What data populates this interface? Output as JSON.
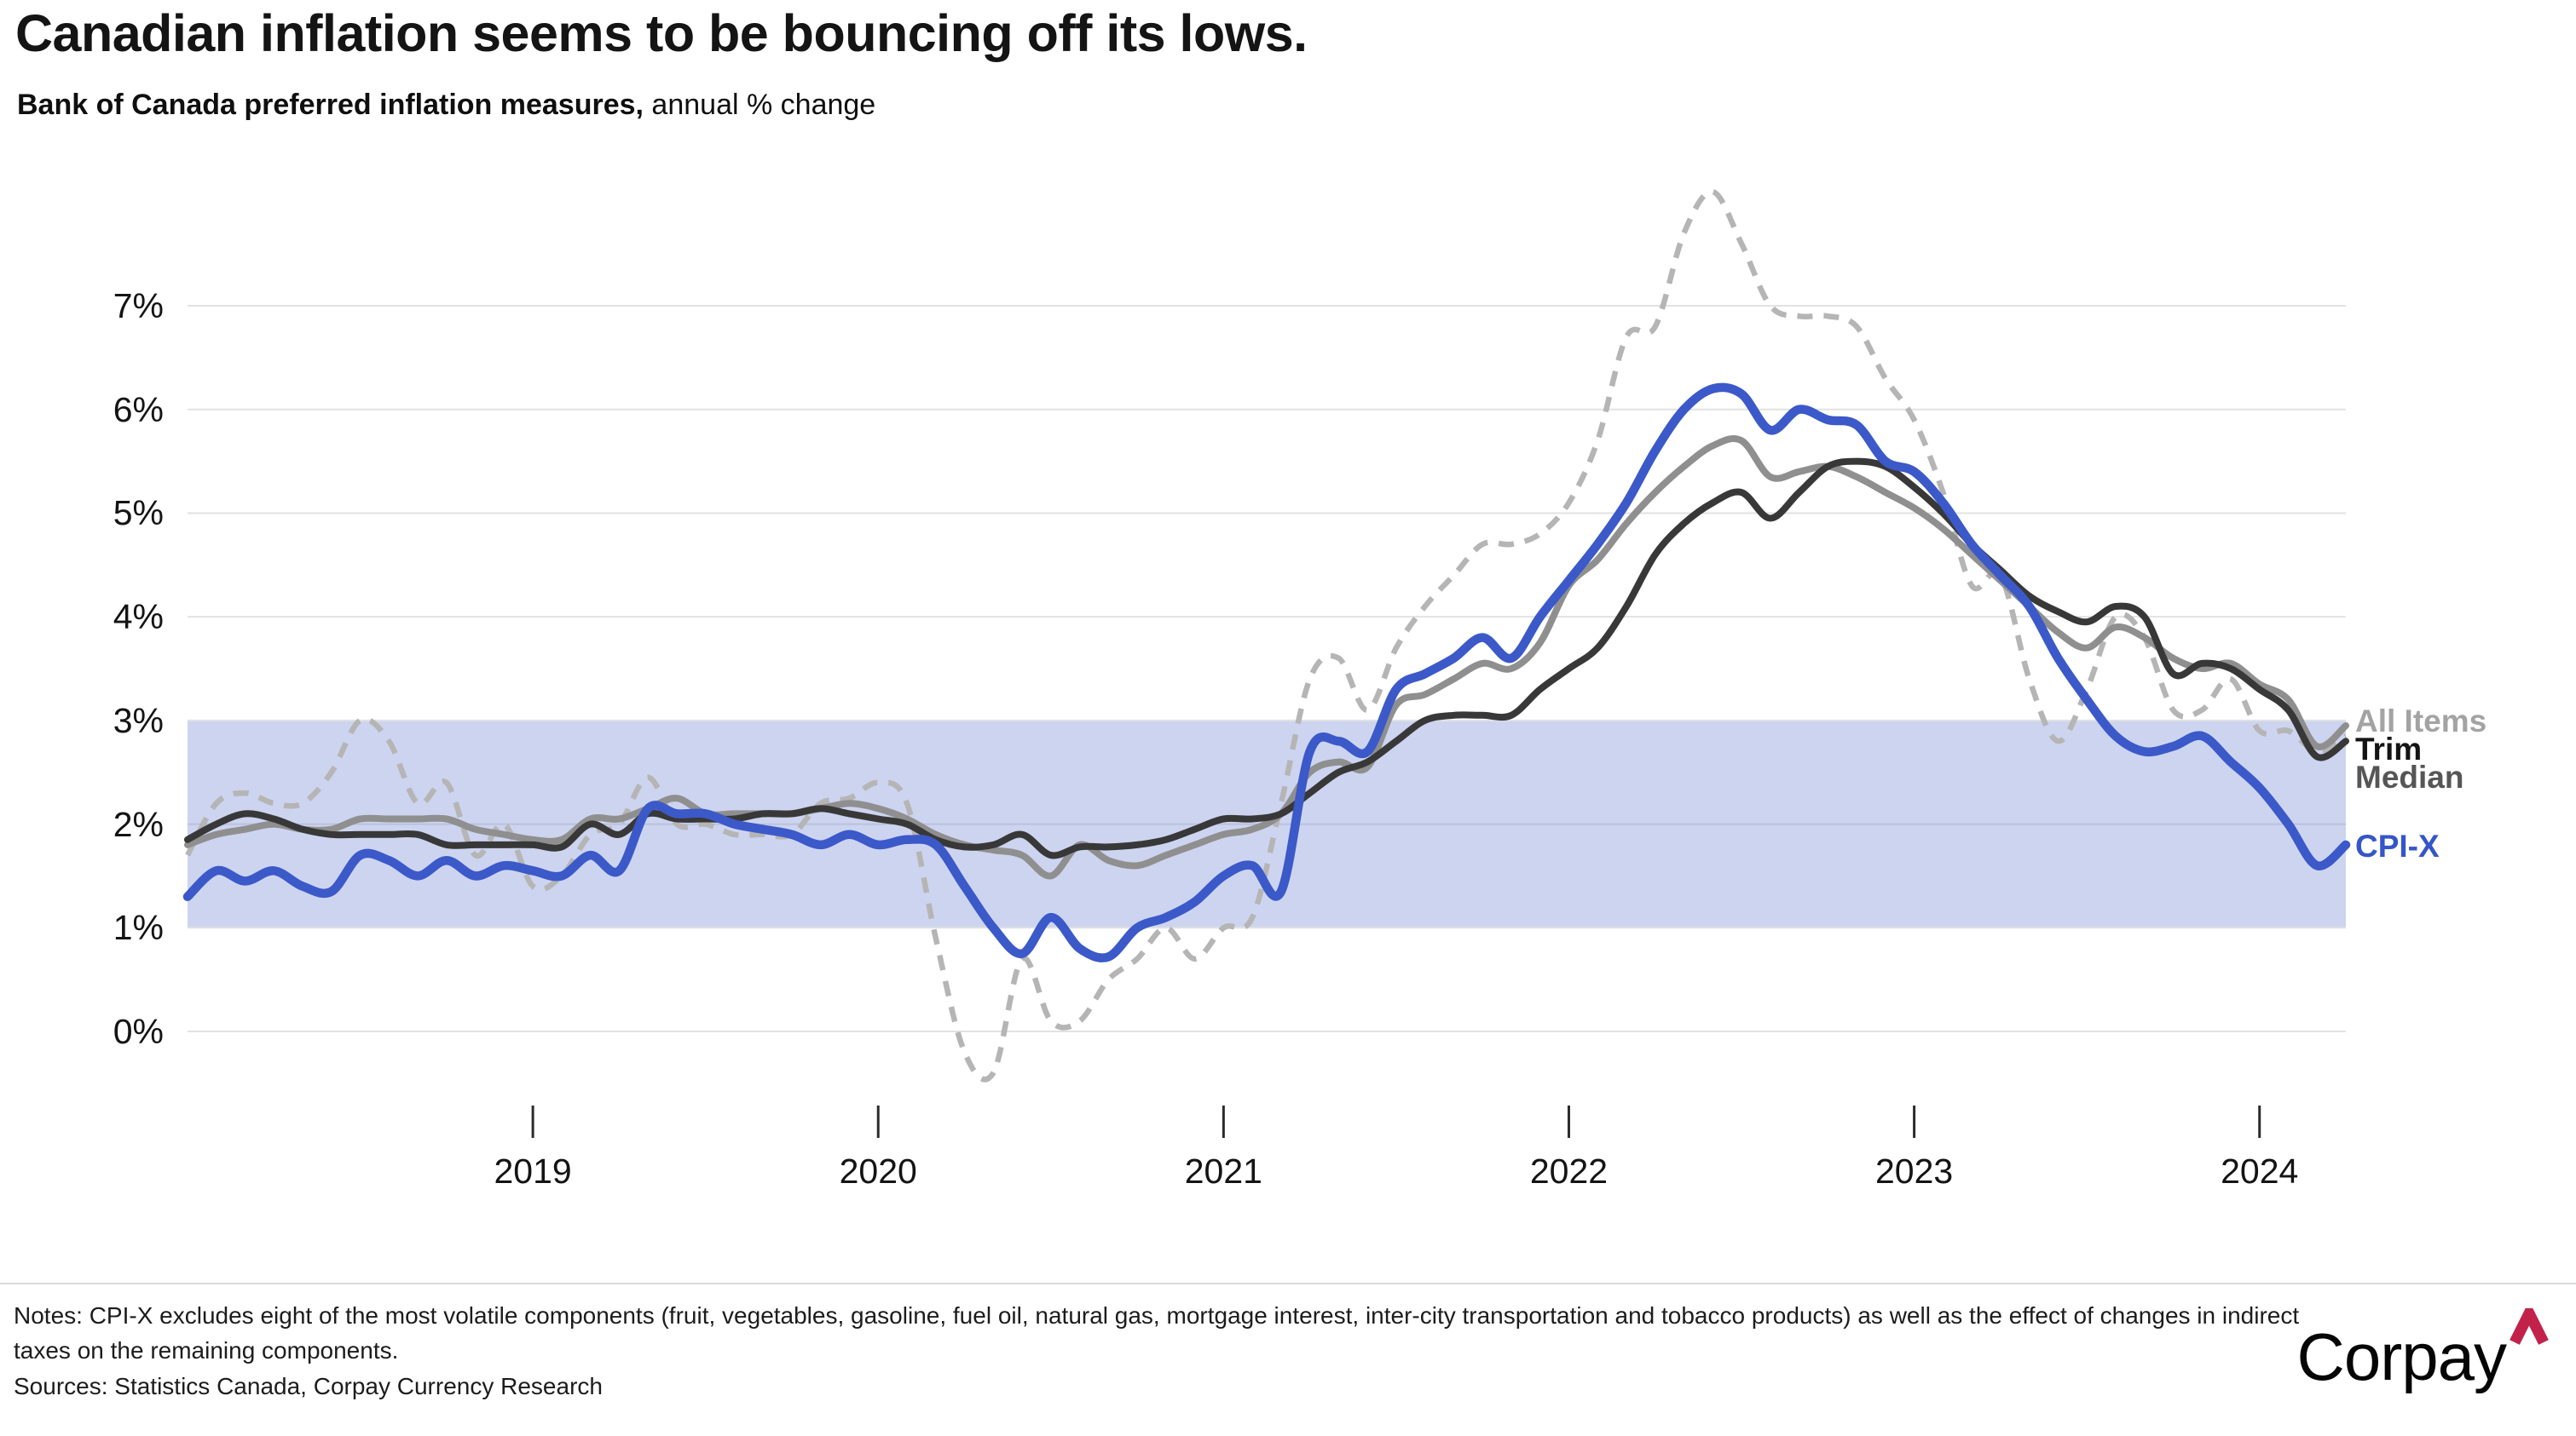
{
  "header": {
    "title": "Canadian inflation seems to be bouncing off its lows.",
    "subtitle_bold": "Bank of Canada preferred inflation measures,",
    "subtitle_rest": " annual % change"
  },
  "chart_data": {
    "type": "line",
    "title": "Bank of Canada preferred inflation measures, annual % change",
    "xlabel": "",
    "ylabel": "annual % change",
    "ylim": [
      0,
      7
    ],
    "grid": "horizontal",
    "legend_position": "right-edge-inline-labels",
    "x": [
      "2018-01",
      "2018-02",
      "2018-03",
      "2018-04",
      "2018-05",
      "2018-06",
      "2018-07",
      "2018-08",
      "2018-09",
      "2018-10",
      "2018-11",
      "2018-12",
      "2019-01",
      "2019-02",
      "2019-03",
      "2019-04",
      "2019-05",
      "2019-06",
      "2019-07",
      "2019-08",
      "2019-09",
      "2019-10",
      "2019-11",
      "2019-12",
      "2020-01",
      "2020-02",
      "2020-03",
      "2020-04",
      "2020-05",
      "2020-06",
      "2020-07",
      "2020-08",
      "2020-09",
      "2020-10",
      "2020-11",
      "2020-12",
      "2021-01",
      "2021-02",
      "2021-03",
      "2021-04",
      "2021-05",
      "2021-06",
      "2021-07",
      "2021-08",
      "2021-09",
      "2021-10",
      "2021-11",
      "2021-12",
      "2022-01",
      "2022-02",
      "2022-03",
      "2022-04",
      "2022-05",
      "2022-06",
      "2022-07",
      "2022-08",
      "2022-09",
      "2022-10",
      "2022-11",
      "2022-12",
      "2023-01",
      "2023-02",
      "2023-03",
      "2023-04",
      "2023-05",
      "2023-06",
      "2023-07",
      "2023-08",
      "2023-09",
      "2023-10",
      "2023-11",
      "2023-12",
      "2024-01",
      "2024-02",
      "2024-03",
      "2024-04"
    ],
    "x_tick_labels": [
      "2019",
      "2020",
      "2021",
      "2022",
      "2023",
      "2024"
    ],
    "y_ticks": [
      {
        "label": "7%",
        "value": 7
      },
      {
        "label": "6%",
        "value": 6
      },
      {
        "label": "5%",
        "value": 5
      },
      {
        "label": "4%",
        "value": 4
      },
      {
        "label": "3%",
        "value": 3
      },
      {
        "label": "2%",
        "value": 2
      },
      {
        "label": "1%",
        "value": 1
      },
      {
        "label": "0%",
        "value": 0
      }
    ],
    "target_band": {
      "from": 1,
      "to": 3,
      "color": "#cdd4f0",
      "inner_gridline_color": "#b9c0dc"
    },
    "gridline_color": "#e2e2e2",
    "series": [
      {
        "name": "All Items",
        "color": "#b5b5b5",
        "style": "dashed",
        "values": [
          1.7,
          2.2,
          2.3,
          2.2,
          2.2,
          2.5,
          3.0,
          2.8,
          2.2,
          2.4,
          1.7,
          2.0,
          1.4,
          1.5,
          1.9,
          2.0,
          2.45,
          2.0,
          2.0,
          1.9,
          1.9,
          1.9,
          2.2,
          2.25,
          2.4,
          2.2,
          0.9,
          -0.2,
          -0.4,
          0.7,
          0.1,
          0.1,
          0.5,
          0.7,
          1.0,
          0.7,
          1.0,
          1.1,
          2.2,
          3.4,
          3.6,
          3.1,
          3.7,
          4.1,
          4.4,
          4.7,
          4.7,
          4.8,
          5.1,
          5.7,
          6.7,
          6.8,
          7.7,
          8.1,
          7.6,
          7.0,
          6.9,
          6.9,
          6.8,
          6.3,
          5.9,
          5.2,
          4.3,
          4.4,
          3.4,
          2.8,
          3.3,
          4.0,
          3.8,
          3.1,
          3.1,
          3.4,
          2.9,
          2.9,
          2.7,
          2.85
        ]
      },
      {
        "name": "Median",
        "color": "#8f8f8f",
        "style": "solid",
        "values": [
          1.8,
          1.9,
          1.95,
          2.0,
          1.95,
          1.95,
          2.05,
          2.05,
          2.05,
          2.05,
          1.95,
          1.9,
          1.85,
          1.85,
          2.05,
          2.05,
          2.15,
          2.25,
          2.1,
          2.1,
          2.1,
          2.1,
          2.15,
          2.2,
          2.15,
          2.05,
          1.9,
          1.8,
          1.75,
          1.7,
          1.5,
          1.8,
          1.65,
          1.6,
          1.7,
          1.8,
          1.9,
          1.95,
          2.1,
          2.5,
          2.6,
          2.55,
          3.15,
          3.25,
          3.4,
          3.55,
          3.5,
          3.75,
          4.3,
          4.55,
          4.9,
          5.2,
          5.45,
          5.65,
          5.7,
          5.35,
          5.4,
          5.45,
          5.35,
          5.2,
          5.05,
          4.85,
          4.6,
          4.35,
          4.1,
          3.85,
          3.7,
          3.9,
          3.8,
          3.6,
          3.5,
          3.55,
          3.35,
          3.2,
          2.75,
          2.95
        ]
      },
      {
        "name": "Trim",
        "color": "#383838",
        "style": "solid",
        "values": [
          1.85,
          2.0,
          2.1,
          2.05,
          1.95,
          1.9,
          1.9,
          1.9,
          1.9,
          1.8,
          1.8,
          1.8,
          1.8,
          1.78,
          2.0,
          1.9,
          2.1,
          2.05,
          2.05,
          2.05,
          2.1,
          2.1,
          2.15,
          2.1,
          2.05,
          2.0,
          1.85,
          1.78,
          1.8,
          1.9,
          1.7,
          1.78,
          1.78,
          1.8,
          1.85,
          1.95,
          2.05,
          2.05,
          2.1,
          2.3,
          2.5,
          2.6,
          2.8,
          3.0,
          3.05,
          3.05,
          3.05,
          3.3,
          3.5,
          3.7,
          4.1,
          4.6,
          4.9,
          5.1,
          5.2,
          4.95,
          5.2,
          5.45,
          5.5,
          5.45,
          5.25,
          5.0,
          4.7,
          4.45,
          4.2,
          4.05,
          3.95,
          4.1,
          4.0,
          3.45,
          3.55,
          3.5,
          3.3,
          3.1,
          2.65,
          2.8
        ]
      },
      {
        "name": "CPI-X",
        "color": "#3b59c8",
        "style": "solid",
        "values": [
          1.3,
          1.55,
          1.45,
          1.55,
          1.4,
          1.35,
          1.7,
          1.65,
          1.5,
          1.65,
          1.5,
          1.6,
          1.55,
          1.5,
          1.7,
          1.55,
          2.15,
          2.1,
          2.1,
          2.0,
          1.95,
          1.9,
          1.8,
          1.9,
          1.8,
          1.85,
          1.8,
          1.4,
          1.0,
          0.75,
          1.1,
          0.8,
          0.72,
          1.0,
          1.1,
          1.25,
          1.5,
          1.6,
          1.35,
          2.7,
          2.8,
          2.7,
          3.3,
          3.45,
          3.6,
          3.8,
          3.6,
          4.0,
          4.35,
          4.7,
          5.1,
          5.6,
          6.0,
          6.2,
          6.15,
          5.8,
          6.0,
          5.9,
          5.85,
          5.5,
          5.4,
          5.1,
          4.7,
          4.4,
          4.1,
          3.6,
          3.2,
          2.85,
          2.7,
          2.75,
          2.85,
          2.6,
          2.35,
          2.0,
          1.6,
          1.8
        ]
      }
    ],
    "series_end_labels": [
      {
        "text": "All Items",
        "color": "#a3a3a3"
      },
      {
        "text": "Trim",
        "color": "#141414"
      },
      {
        "text": "Median",
        "color": "#565656"
      },
      {
        "text": "CPI-X",
        "color": "#3456c8"
      }
    ]
  },
  "footer": {
    "notes": "Notes: CPI-X excludes eight of the most volatile components (fruit, vegetables, gasoline, fuel oil, natural gas, mortgage interest, inter-city transportation and tobacco products) as well as the effect of changes in indirect taxes on the remaining components.",
    "sources": "Sources: Statistics Canada, Corpay Currency Research",
    "logo_text": "Corpay",
    "logo_caret_icon": "caret-up",
    "logo_caret_color": "#c2224a"
  }
}
